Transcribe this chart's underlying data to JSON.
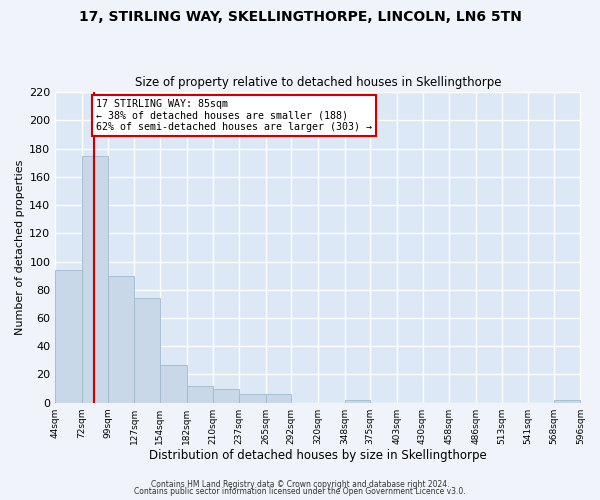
{
  "title": "17, STIRLING WAY, SKELLINGTHORPE, LINCOLN, LN6 5TN",
  "subtitle": "Size of property relative to detached houses in Skellingthorpe",
  "xlabel": "Distribution of detached houses by size in Skellingthorpe",
  "ylabel": "Number of detached properties",
  "bar_color": "#c8d8e8",
  "bar_edge_color": "#a0b8cc",
  "background_color": "#dce8f5",
  "grid_color": "#ffffff",
  "annotation_line_color": "#cc0000",
  "annotation_box_color": "#cc0000",
  "annotation_text_line1": "17 STIRLING WAY: 85sqm",
  "annotation_text_line2": "← 38% of detached houses are smaller (188)",
  "annotation_text_line3": "62% of semi-detached houses are larger (303) →",
  "property_size_sqm": 85,
  "bin_edges": [
    44,
    72,
    99,
    127,
    154,
    182,
    210,
    237,
    265,
    292,
    320,
    348,
    375,
    403,
    430,
    458,
    486,
    513,
    541,
    568,
    596
  ],
  "bin_labels": [
    "44sqm",
    "72sqm",
    "99sqm",
    "127sqm",
    "154sqm",
    "182sqm",
    "210sqm",
    "237sqm",
    "265sqm",
    "292sqm",
    "320sqm",
    "348sqm",
    "375sqm",
    "403sqm",
    "430sqm",
    "458sqm",
    "486sqm",
    "513sqm",
    "541sqm",
    "568sqm",
    "596sqm"
  ],
  "counts": [
    94,
    175,
    90,
    74,
    27,
    12,
    10,
    6,
    6,
    0,
    0,
    2,
    0,
    0,
    0,
    0,
    0,
    0,
    0,
    2
  ],
  "ylim": [
    0,
    220
  ],
  "yticks": [
    0,
    20,
    40,
    60,
    80,
    100,
    120,
    140,
    160,
    180,
    200,
    220
  ],
  "footer1": "Contains HM Land Registry data © Crown copyright and database right 2024.",
  "footer2": "Contains public sector information licensed under the Open Government Licence v3.0.",
  "fig_bg": "#f0f4fa"
}
